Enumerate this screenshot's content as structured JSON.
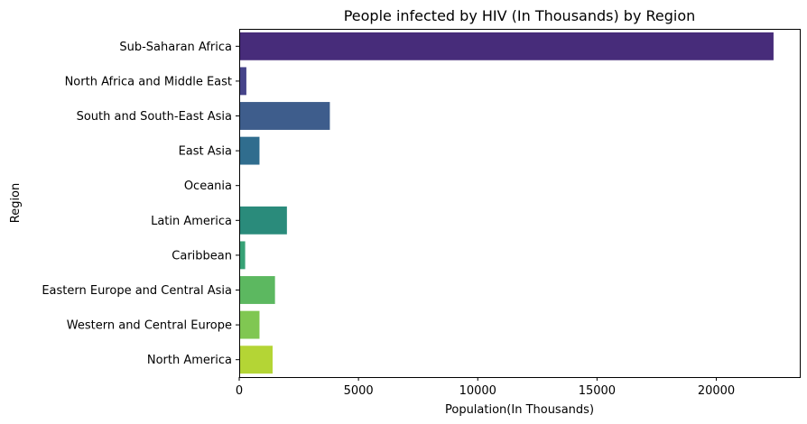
{
  "chart_data": {
    "type": "bar",
    "orientation": "horizontal",
    "title": "People infected by HIV (In Thousands) by Region",
    "xlabel": "Population(In Thousands)",
    "ylabel": "Region",
    "xlim": [
      0,
      23500
    ],
    "xticks": [
      0,
      5000,
      10000,
      15000,
      20000
    ],
    "grid": false,
    "categories": [
      "Sub-Saharan Africa",
      "North Africa and Middle East",
      "South and South-East Asia",
      "East Asia",
      "Oceania",
      "Latin America",
      "Caribbean",
      "Eastern Europe and Central Asia",
      "Western and Central Europe",
      "North America"
    ],
    "values": [
      22400,
      300,
      3800,
      850,
      30,
      2000,
      250,
      1500,
      850,
      1400
    ],
    "colors": [
      "#472c7a",
      "#46448a",
      "#3e5d8c",
      "#306d8e",
      "#25858e",
      "#2a8b7b",
      "#37a276",
      "#5cb860",
      "#80c752",
      "#b4d535"
    ]
  }
}
